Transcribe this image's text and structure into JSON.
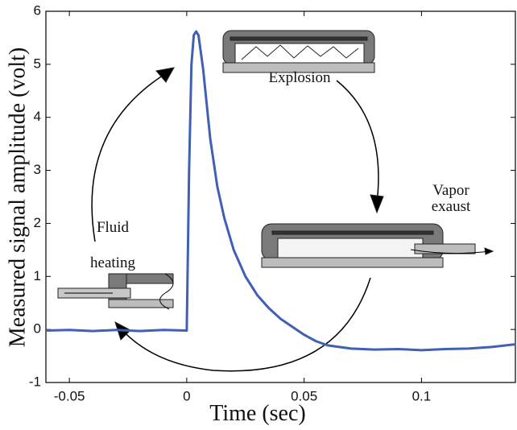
{
  "chart_data": {
    "type": "line",
    "x_label": "Time (sec)",
    "y_label": "Measured signal amplitude (volt)",
    "annotations": [
      "Explosion",
      "Vapor",
      "exaust",
      "Fluid",
      "heating"
    ],
    "x": [
      -0.06,
      -0.05,
      -0.04,
      -0.03,
      -0.02,
      -0.01,
      0,
      0.001,
      0.002,
      0.003,
      0.004,
      0.005,
      0.007,
      0.01,
      0.013,
      0.016,
      0.02,
      0.025,
      0.03,
      0.035,
      0.04,
      0.045,
      0.05,
      0.055,
      0.06,
      0.07,
      0.08,
      0.09,
      0.1,
      0.11,
      0.12,
      0.13,
      0.14
    ],
    "values": [
      -0.02,
      -0.01,
      -0.03,
      -0.01,
      -0.03,
      -0.01,
      -0.02,
      3.0,
      5.0,
      5.55,
      5.62,
      5.55,
      4.9,
      3.6,
      2.7,
      2.1,
      1.5,
      1.0,
      0.65,
      0.4,
      0.2,
      0.05,
      -0.1,
      -0.22,
      -0.3,
      -0.36,
      -0.38,
      -0.37,
      -0.39,
      -0.37,
      -0.36,
      -0.33,
      -0.28
    ],
    "color": "#4060b4",
    "xlim": [
      -0.06,
      0.14
    ],
    "ylim": [
      -1,
      6
    ],
    "xticks": [
      -0.05,
      0,
      0.05,
      0.1
    ],
    "yticks": [
      -1,
      0,
      1,
      2,
      3,
      4,
      5,
      6
    ],
    "grid": false
  }
}
